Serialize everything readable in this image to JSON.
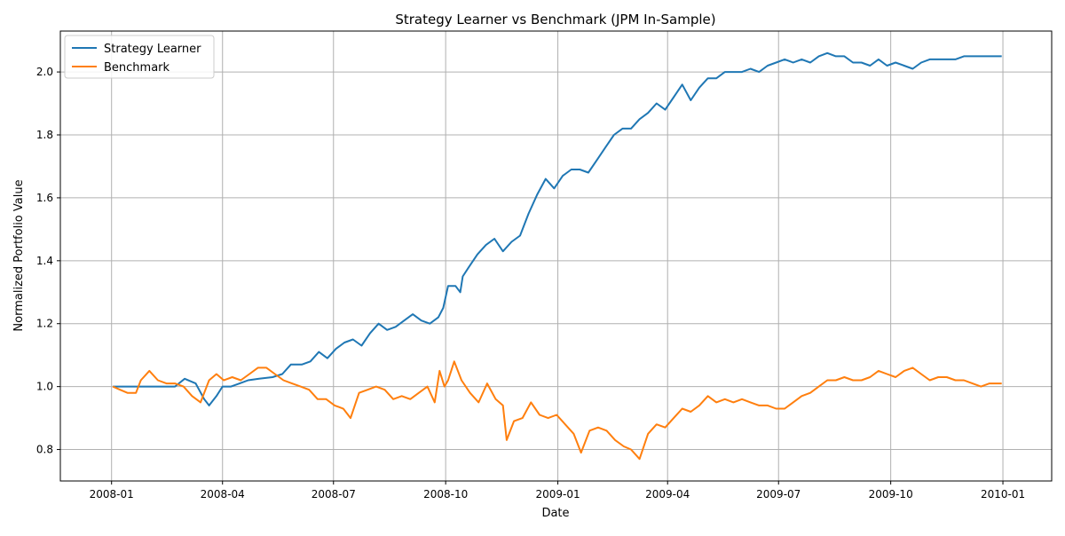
{
  "chart_data": {
    "type": "line",
    "title": "Strategy Learner vs Benchmark (JPM In-Sample)",
    "xlabel": "Date",
    "ylabel": "Normalized Portfolio Value",
    "xlim": [
      "2007-11-20",
      "2010-02-10"
    ],
    "ylim": [
      0.7,
      2.13
    ],
    "x_ticks": [
      "2008-01",
      "2008-04",
      "2008-07",
      "2008-10",
      "2009-01",
      "2009-04",
      "2009-07",
      "2009-10",
      "2010-01"
    ],
    "y_ticks": [
      0.8,
      1.0,
      1.2,
      1.4,
      1.6,
      1.8,
      2.0
    ],
    "y_tick_labels": [
      "0.8",
      "1.0",
      "1.2",
      "1.4",
      "1.6",
      "1.8",
      "2.0"
    ],
    "grid": true,
    "legend_position": "upper-left",
    "series": [
      {
        "name": "Strategy Learner",
        "color": "#1f77b4",
        "points": [
          [
            "2008-01-02",
            1.0
          ],
          [
            "2008-01-15",
            1.0
          ],
          [
            "2008-02-01",
            1.0
          ],
          [
            "2008-02-14",
            1.0
          ],
          [
            "2008-02-22",
            1.0
          ],
          [
            "2008-03-01",
            1.025
          ],
          [
            "2008-03-10",
            1.01
          ],
          [
            "2008-03-17",
            0.96
          ],
          [
            "2008-03-21",
            0.94
          ],
          [
            "2008-03-27",
            0.97
          ],
          [
            "2008-04-01",
            1.0
          ],
          [
            "2008-04-08",
            1.0
          ],
          [
            "2008-04-15",
            1.01
          ],
          [
            "2008-04-22",
            1.02
          ],
          [
            "2008-05-01",
            1.025
          ],
          [
            "2008-05-12",
            1.03
          ],
          [
            "2008-05-20",
            1.04
          ],
          [
            "2008-05-27",
            1.07
          ],
          [
            "2008-06-05",
            1.07
          ],
          [
            "2008-06-12",
            1.08
          ],
          [
            "2008-06-19",
            1.11
          ],
          [
            "2008-06-26",
            1.09
          ],
          [
            "2008-07-03",
            1.12
          ],
          [
            "2008-07-10",
            1.14
          ],
          [
            "2008-07-17",
            1.15
          ],
          [
            "2008-07-24",
            1.13
          ],
          [
            "2008-07-31",
            1.17
          ],
          [
            "2008-08-07",
            1.2
          ],
          [
            "2008-08-14",
            1.18
          ],
          [
            "2008-08-21",
            1.19
          ],
          [
            "2008-08-28",
            1.21
          ],
          [
            "2008-09-04",
            1.23
          ],
          [
            "2008-09-11",
            1.21
          ],
          [
            "2008-09-18",
            1.2
          ],
          [
            "2008-09-25",
            1.22
          ],
          [
            "2008-09-29",
            1.25
          ],
          [
            "2008-10-03",
            1.32
          ],
          [
            "2008-10-09",
            1.32
          ],
          [
            "2008-10-13",
            1.3
          ],
          [
            "2008-10-15",
            1.35
          ],
          [
            "2008-10-20",
            1.38
          ],
          [
            "2008-10-27",
            1.42
          ],
          [
            "2008-11-03",
            1.45
          ],
          [
            "2008-11-10",
            1.47
          ],
          [
            "2008-11-17",
            1.43
          ],
          [
            "2008-11-24",
            1.46
          ],
          [
            "2008-12-01",
            1.48
          ],
          [
            "2008-12-08",
            1.55
          ],
          [
            "2008-12-15",
            1.61
          ],
          [
            "2008-12-22",
            1.66
          ],
          [
            "2008-12-29",
            1.63
          ],
          [
            "2009-01-05",
            1.67
          ],
          [
            "2009-01-12",
            1.69
          ],
          [
            "2009-01-19",
            1.69
          ],
          [
            "2009-01-26",
            1.68
          ],
          [
            "2009-02-02",
            1.72
          ],
          [
            "2009-02-09",
            1.76
          ],
          [
            "2009-02-16",
            1.8
          ],
          [
            "2009-02-23",
            1.82
          ],
          [
            "2009-03-02",
            1.82
          ],
          [
            "2009-03-09",
            1.85
          ],
          [
            "2009-03-16",
            1.87
          ],
          [
            "2009-03-23",
            1.9
          ],
          [
            "2009-03-30",
            1.88
          ],
          [
            "2009-04-06",
            1.92
          ],
          [
            "2009-04-13",
            1.96
          ],
          [
            "2009-04-20",
            1.91
          ],
          [
            "2009-04-27",
            1.95
          ],
          [
            "2009-05-04",
            1.98
          ],
          [
            "2009-05-11",
            1.98
          ],
          [
            "2009-05-18",
            2.0
          ],
          [
            "2009-05-25",
            2.0
          ],
          [
            "2009-06-01",
            2.0
          ],
          [
            "2009-06-08",
            2.01
          ],
          [
            "2009-06-15",
            2.0
          ],
          [
            "2009-06-22",
            2.02
          ],
          [
            "2009-06-29",
            2.03
          ],
          [
            "2009-07-06",
            2.04
          ],
          [
            "2009-07-13",
            2.03
          ],
          [
            "2009-07-20",
            2.04
          ],
          [
            "2009-07-27",
            2.03
          ],
          [
            "2009-08-03",
            2.05
          ],
          [
            "2009-08-10",
            2.06
          ],
          [
            "2009-08-17",
            2.05
          ],
          [
            "2009-08-24",
            2.05
          ],
          [
            "2009-08-31",
            2.03
          ],
          [
            "2009-09-07",
            2.03
          ],
          [
            "2009-09-14",
            2.02
          ],
          [
            "2009-09-21",
            2.04
          ],
          [
            "2009-09-28",
            2.02
          ],
          [
            "2009-10-05",
            2.03
          ],
          [
            "2009-10-12",
            2.02
          ],
          [
            "2009-10-19",
            2.01
          ],
          [
            "2009-10-26",
            2.03
          ],
          [
            "2009-11-02",
            2.04
          ],
          [
            "2009-11-09",
            2.04
          ],
          [
            "2009-11-16",
            2.04
          ],
          [
            "2009-11-23",
            2.04
          ],
          [
            "2009-11-30",
            2.05
          ],
          [
            "2009-12-07",
            2.05
          ],
          [
            "2009-12-14",
            2.05
          ],
          [
            "2009-12-21",
            2.05
          ],
          [
            "2009-12-31",
            2.05
          ]
        ]
      },
      {
        "name": "Benchmark",
        "color": "#ff7f0e",
        "points": [
          [
            "2008-01-02",
            1.0
          ],
          [
            "2008-01-08",
            0.99
          ],
          [
            "2008-01-14",
            0.98
          ],
          [
            "2008-01-21",
            0.98
          ],
          [
            "2008-01-25",
            1.02
          ],
          [
            "2008-02-01",
            1.05
          ],
          [
            "2008-02-08",
            1.02
          ],
          [
            "2008-02-15",
            1.01
          ],
          [
            "2008-02-22",
            1.01
          ],
          [
            "2008-02-29",
            1.0
          ],
          [
            "2008-03-07",
            0.97
          ],
          [
            "2008-03-14",
            0.95
          ],
          [
            "2008-03-21",
            1.02
          ],
          [
            "2008-03-27",
            1.04
          ],
          [
            "2008-04-02",
            1.02
          ],
          [
            "2008-04-09",
            1.03
          ],
          [
            "2008-04-16",
            1.02
          ],
          [
            "2008-04-23",
            1.04
          ],
          [
            "2008-04-30",
            1.06
          ],
          [
            "2008-05-07",
            1.06
          ],
          [
            "2008-05-14",
            1.04
          ],
          [
            "2008-05-21",
            1.02
          ],
          [
            "2008-05-28",
            1.01
          ],
          [
            "2008-06-04",
            1.0
          ],
          [
            "2008-06-11",
            0.99
          ],
          [
            "2008-06-18",
            0.96
          ],
          [
            "2008-06-25",
            0.96
          ],
          [
            "2008-07-02",
            0.94
          ],
          [
            "2008-07-09",
            0.93
          ],
          [
            "2008-07-15",
            0.9
          ],
          [
            "2008-07-22",
            0.98
          ],
          [
            "2008-07-29",
            0.99
          ],
          [
            "2008-08-05",
            1.0
          ],
          [
            "2008-08-12",
            0.99
          ],
          [
            "2008-08-19",
            0.96
          ],
          [
            "2008-08-26",
            0.97
          ],
          [
            "2008-09-02",
            0.96
          ],
          [
            "2008-09-09",
            0.98
          ],
          [
            "2008-09-16",
            1.0
          ],
          [
            "2008-09-22",
            0.95
          ],
          [
            "2008-09-26",
            1.05
          ],
          [
            "2008-09-30",
            1.0
          ],
          [
            "2008-10-03",
            1.02
          ],
          [
            "2008-10-08",
            1.08
          ],
          [
            "2008-10-14",
            1.02
          ],
          [
            "2008-10-21",
            0.98
          ],
          [
            "2008-10-28",
            0.95
          ],
          [
            "2008-11-04",
            1.01
          ],
          [
            "2008-11-11",
            0.96
          ],
          [
            "2008-11-17",
            0.94
          ],
          [
            "2008-11-20",
            0.83
          ],
          [
            "2008-11-26",
            0.89
          ],
          [
            "2008-12-03",
            0.9
          ],
          [
            "2008-12-10",
            0.95
          ],
          [
            "2008-12-17",
            0.91
          ],
          [
            "2008-12-24",
            0.9
          ],
          [
            "2008-12-31",
            0.91
          ],
          [
            "2009-01-07",
            0.88
          ],
          [
            "2009-01-14",
            0.85
          ],
          [
            "2009-01-20",
            0.79
          ],
          [
            "2009-01-27",
            0.86
          ],
          [
            "2009-02-03",
            0.87
          ],
          [
            "2009-02-10",
            0.86
          ],
          [
            "2009-02-17",
            0.83
          ],
          [
            "2009-02-24",
            0.81
          ],
          [
            "2009-03-02",
            0.8
          ],
          [
            "2009-03-09",
            0.77
          ],
          [
            "2009-03-16",
            0.85
          ],
          [
            "2009-03-23",
            0.88
          ],
          [
            "2009-03-30",
            0.87
          ],
          [
            "2009-04-06",
            0.9
          ],
          [
            "2009-04-13",
            0.93
          ],
          [
            "2009-04-20",
            0.92
          ],
          [
            "2009-04-27",
            0.94
          ],
          [
            "2009-05-04",
            0.97
          ],
          [
            "2009-05-11",
            0.95
          ],
          [
            "2009-05-18",
            0.96
          ],
          [
            "2009-05-25",
            0.95
          ],
          [
            "2009-06-01",
            0.96
          ],
          [
            "2009-06-08",
            0.95
          ],
          [
            "2009-06-15",
            0.94
          ],
          [
            "2009-06-22",
            0.94
          ],
          [
            "2009-06-29",
            0.93
          ],
          [
            "2009-07-06",
            0.93
          ],
          [
            "2009-07-13",
            0.95
          ],
          [
            "2009-07-20",
            0.97
          ],
          [
            "2009-07-27",
            0.98
          ],
          [
            "2009-08-03",
            1.0
          ],
          [
            "2009-08-10",
            1.02
          ],
          [
            "2009-08-17",
            1.02
          ],
          [
            "2009-08-24",
            1.03
          ],
          [
            "2009-08-31",
            1.02
          ],
          [
            "2009-09-07",
            1.02
          ],
          [
            "2009-09-14",
            1.03
          ],
          [
            "2009-09-21",
            1.05
          ],
          [
            "2009-09-28",
            1.04
          ],
          [
            "2009-10-05",
            1.03
          ],
          [
            "2009-10-12",
            1.05
          ],
          [
            "2009-10-19",
            1.06
          ],
          [
            "2009-10-26",
            1.04
          ],
          [
            "2009-11-02",
            1.02
          ],
          [
            "2009-11-09",
            1.03
          ],
          [
            "2009-11-16",
            1.03
          ],
          [
            "2009-11-23",
            1.02
          ],
          [
            "2009-11-30",
            1.02
          ],
          [
            "2009-12-07",
            1.01
          ],
          [
            "2009-12-14",
            1.0
          ],
          [
            "2009-12-21",
            1.01
          ],
          [
            "2009-12-31",
            1.01
          ]
        ]
      }
    ]
  }
}
